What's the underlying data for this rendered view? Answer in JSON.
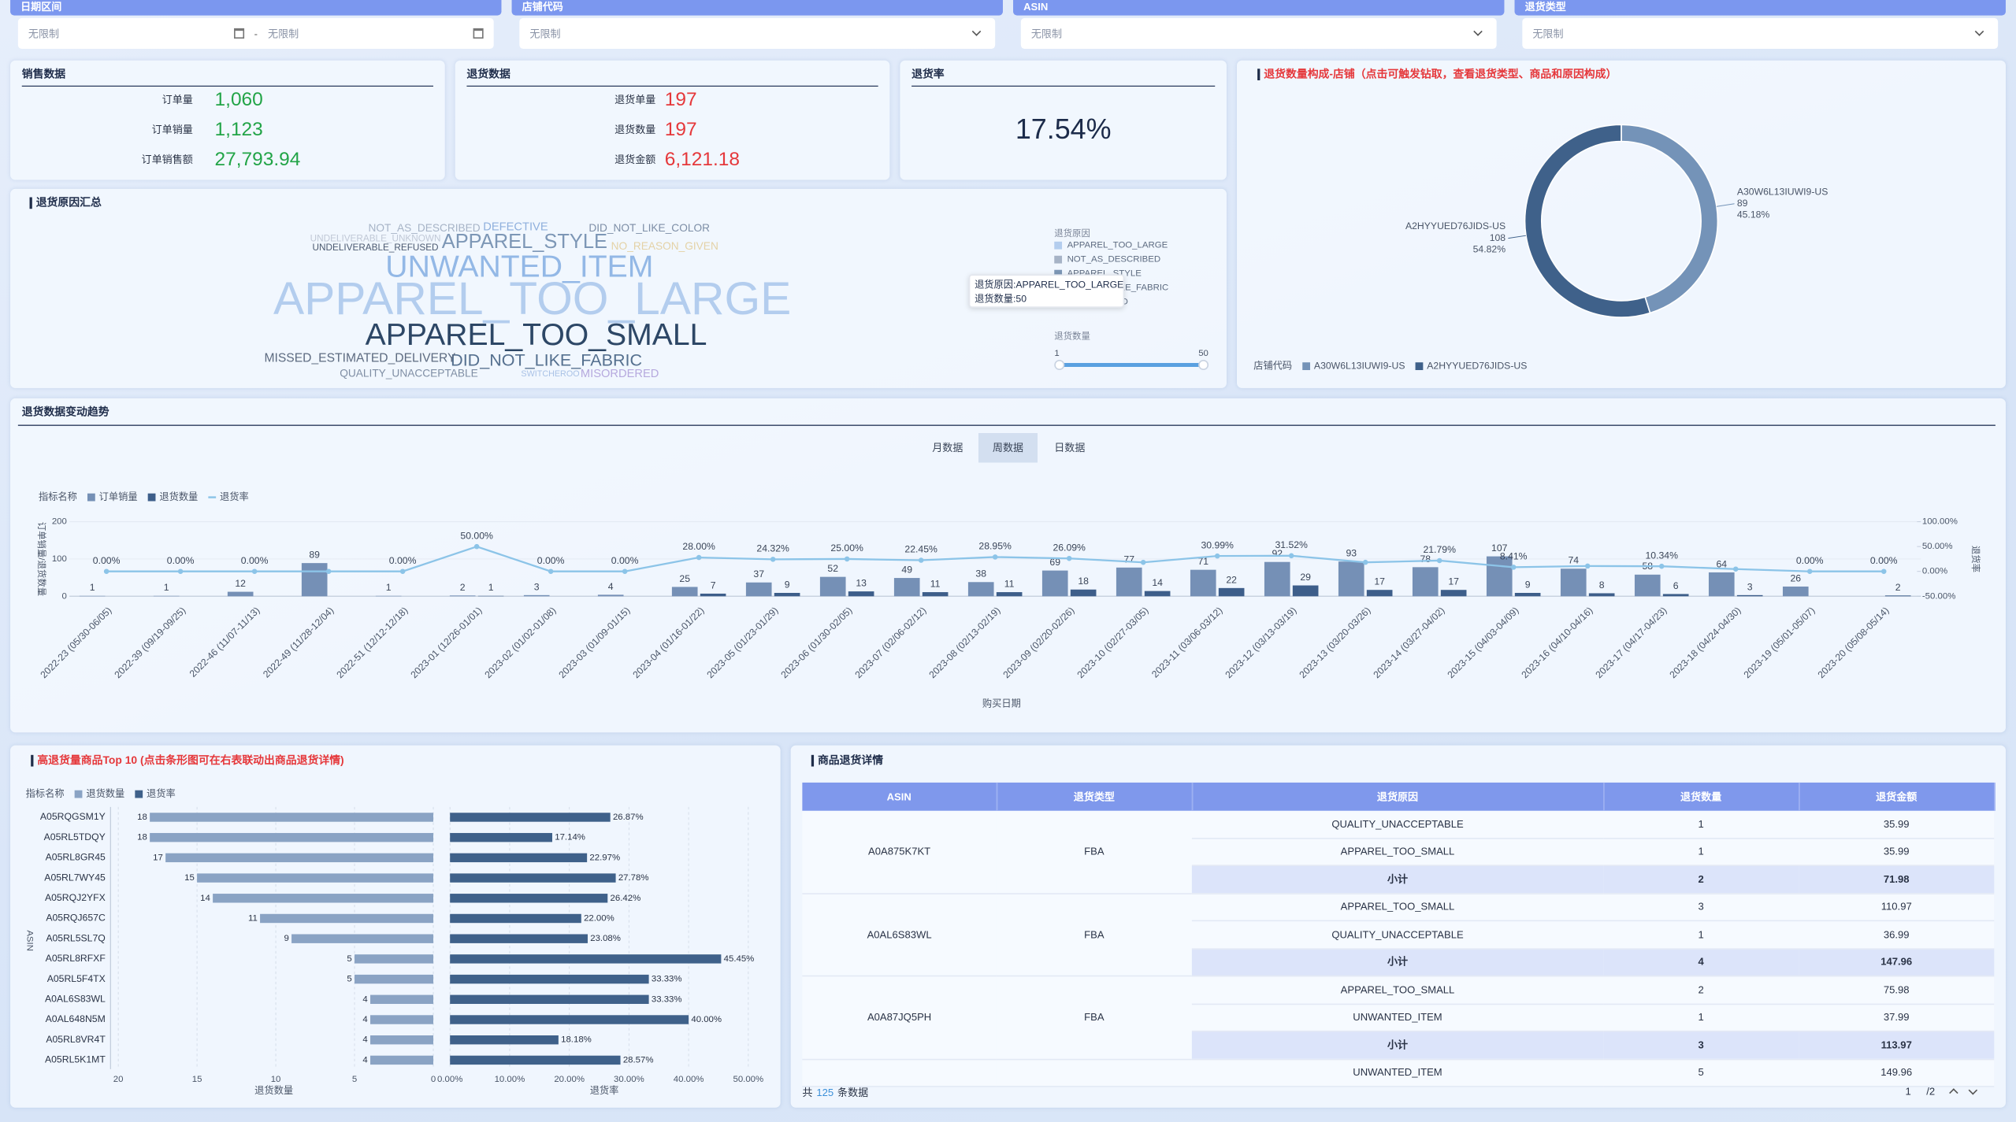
{
  "filters": [
    {
      "label": "日期区间",
      "values": [
        "无限制",
        "无限制"
      ],
      "separator": "-"
    },
    {
      "label": "店铺代码",
      "values": [
        "无限制"
      ]
    },
    {
      "label": "ASIN",
      "values": [
        "无限制"
      ]
    },
    {
      "label": "退货类型",
      "values": [
        "无限制"
      ]
    }
  ],
  "kpi_cards": [
    {
      "title": "销售数据",
      "color": "#22a447",
      "items": [
        {
          "label": "订单量",
          "value": "1,060"
        },
        {
          "label": "订单销量",
          "value": "1,123"
        },
        {
          "label": "订单销售额",
          "value": "27,793.94"
        }
      ]
    },
    {
      "title": "退货数据",
      "color": "#e5383b",
      "items": [
        {
          "label": "退货单量",
          "value": "197"
        },
        {
          "label": "退货数量",
          "value": "197"
        },
        {
          "label": "退货金额",
          "value": "6,121.18"
        }
      ]
    },
    {
      "title": "退货率",
      "value": "17.54%"
    }
  ],
  "chart_data": [
    {
      "type": "wordcloud",
      "title": "退货原因汇总",
      "words": [
        "APPAREL_TOO_LARGE",
        "UNWANTED_ITEM",
        "APPAREL_TOO_SMALL",
        "APPAREL_STYLE",
        "DID_NOT_LIKE_FABRIC",
        "MISSED_ESTIMATED_DELIVERY",
        "DEFECTIVE",
        "NOT_AS_DESCRIBED",
        "DID_NOT_LIKE_COLOR",
        "NO_REASON_GIVEN",
        "UNDELIVERABLE_REFUSED",
        "UNDELIVERABLE_UNKNOWN",
        "QUALITY_UNACCEPTABLE",
        "MISORDERED",
        "SWITCHEROO"
      ],
      "values": [
        50,
        30,
        30,
        16,
        12,
        6,
        5,
        4,
        4,
        4,
        2,
        2,
        4,
        5,
        1
      ],
      "colors": [
        "#b3cdee",
        "#93b8e6",
        "#2d4766",
        "#7d97b6",
        "#55708f",
        "#5d6b80",
        "#8fb0dd",
        "#a6b3c6",
        "#7d8ea6",
        "#e4d2a6",
        "#4c5a70",
        "#c0c8d6",
        "#7f8ea4",
        "#b6a9de",
        "#a9c2e6"
      ],
      "legend": {
        "title": "退货原因",
        "items": [
          "APPAREL_TOO_LARGE",
          "NOT_AS_DESCRIBED",
          "APPAREL_STYLE",
          "DID_NOT_LIKE_FABRIC",
          "MISORDERED"
        ],
        "colors": [
          "#b3cdee",
          "#a6b3c6",
          "#7d97b6",
          "#55708f",
          "#b6a9de"
        ]
      },
      "size_legend": {
        "title": "退货数量",
        "range": [
          1,
          50
        ],
        "color": "#5aa0e0"
      },
      "tooltip": [
        "退货原因:APPAREL_TOO_LARGE",
        "退货数量:50"
      ]
    },
    {
      "type": "donut",
      "title": "退货数量构成-店铺（点击可触发钻取，查看退货类型、商品和原因构成）",
      "labels": [
        "A30W6L13IUWI9-US",
        "A2HYYUED76JIDS-US"
      ],
      "values": [
        89,
        108
      ],
      "percent_labels": [
        "45.18%",
        "54.82%"
      ],
      "colors": [
        "#7493b8",
        "#3f618a"
      ],
      "legend_title": "店铺代码"
    },
    {
      "type": "combo",
      "title": "退货数据变动趋势",
      "tabs": [
        "月数据",
        "周数据",
        "日数据"
      ],
      "active_tab": 1,
      "legend_title": "指标名称",
      "x_title": "购买日期",
      "y_title": "订单销量/退货数量",
      "y2_title": "退货率",
      "categories": [
        "2022-23 (05/30-06/05)",
        "2022-39 (09/19-09/25)",
        "2022-46 (11/07-11/13)",
        "2022-49 (11/28-12/04)",
        "2022-51 (12/12-12/18)",
        "2023-01 (12/26-01/01)",
        "2023-02 (01/02-01/08)",
        "2023-03 (01/09-01/15)",
        "2023-04 (01/16-01/22)",
        "2023-05 (01/23-01/29)",
        "2023-06 (01/30-02/05)",
        "2023-07 (02/06-02/12)",
        "2023-08 (02/13-02/19)",
        "2023-09 (02/20-02/26)",
        "2023-10 (02/27-03/05)",
        "2023-11 (03/06-03/12)",
        "2023-12 (03/13-03/19)",
        "2023-13 (03/20-03/26)",
        "2023-14 (03/27-04/02)",
        "2023-15 (04/03-04/09)",
        "2023-16 (04/10-04/16)",
        "2023-17 (04/17-04/23)",
        "2023-18 (04/24-04/30)",
        "2023-19 (05/01-05/07)",
        "2023-20 (05/08-05/14)"
      ],
      "series": [
        {
          "name": "订单销量",
          "type": "bar",
          "color": "#7590b6",
          "values": [
            1,
            1,
            12,
            89,
            1,
            2,
            3,
            4,
            25,
            37,
            52,
            49,
            38,
            69,
            77,
            71,
            92,
            93,
            78,
            107,
            74,
            58,
            64,
            26,
            null
          ]
        },
        {
          "name": "退货数量",
          "type": "bar",
          "color": "#3d5e8a",
          "values": [
            null,
            null,
            null,
            null,
            null,
            1,
            null,
            null,
            7,
            9,
            13,
            11,
            11,
            18,
            14,
            22,
            29,
            17,
            17,
            9,
            8,
            6,
            3,
            null,
            2
          ]
        },
        {
          "name": "退货率",
          "type": "line",
          "axis": "y2",
          "color": "#8cc4e8",
          "values": [
            0,
            0,
            0,
            0,
            0,
            50,
            0,
            0,
            28,
            24.32,
            25,
            22.45,
            28.95,
            26.09,
            18.18,
            30.99,
            31.52,
            18.28,
            21.79,
            8.41,
            10.81,
            10.34,
            4.69,
            0,
            0
          ],
          "value_labels": [
            "0.00%",
            "0.00%",
            "0.00%",
            null,
            "0.00%",
            "50.00%",
            "0.00%",
            "0.00%",
            "28.00%",
            "24.32%",
            "25.00%",
            "22.45%",
            "28.95%",
            "26.09%",
            null,
            "30.99%",
            "31.52%",
            null,
            "21.79%",
            "8.41%",
            null,
            "10.34%",
            null,
            "0.00%",
            "0.00%"
          ]
        }
      ],
      "ylim": [
        0,
        200
      ],
      "yticks": [
        0,
        100,
        200
      ],
      "y2lim": [
        -50,
        100
      ],
      "y2ticks": [
        {
          "value": 100,
          "label": "100.00%"
        },
        {
          "value": 50,
          "label": "50.00%"
        },
        {
          "value": 0,
          "label": "0.00%"
        },
        {
          "value": -50,
          "label": "-50.00%"
        }
      ],
      "grid": true
    },
    {
      "type": "butterfly",
      "title": "高退货量商品Top 10 (点击条形图可在右表联动出商品退货详情)",
      "legend_title": "指标名称",
      "categories": [
        "A05RQGSM1Y",
        "A05RL5TDQY",
        "A05RL8GR45",
        "A05RL7WY45",
        "A05RQJ2YFX",
        "A05RQJ657C",
        "A05RL5SL7Q",
        "A05RL8RFXF",
        "A05RL5F4TX",
        "A0AL6S83WL",
        "A0AL648N5M",
        "A05RL8VR4T",
        "A05RL5K1MT"
      ],
      "series": [
        {
          "name": "退货数量",
          "color": "#8aa3c4",
          "axis": "x",
          "values": [
            18,
            18,
            17,
            15,
            14,
            11,
            9,
            5,
            5,
            4,
            4,
            4,
            4
          ]
        },
        {
          "name": "退货率",
          "color": "#3f618a",
          "axis": "x2",
          "values": [
            26.87,
            17.14,
            22.97,
            27.78,
            26.42,
            22.0,
            23.08,
            45.45,
            33.33,
            33.33,
            40.0,
            18.18,
            28.57
          ],
          "value_labels": [
            "26.87%",
            "17.14%",
            "22.97%",
            "27.78%",
            "26.42%",
            "22.00%",
            "23.08%",
            "45.45%",
            "33.33%",
            "33.33%",
            "40.00%",
            "18.18%",
            "28.57%"
          ]
        }
      ],
      "xlim": [
        20,
        0
      ],
      "xticks": [
        20,
        15,
        10,
        5,
        0
      ],
      "x_title": "退货数量",
      "x2lim": [
        0,
        50
      ],
      "x2ticks": [
        {
          "value": 0,
          "label": "0.00%"
        },
        {
          "value": 10,
          "label": "10.00%"
        },
        {
          "value": 20,
          "label": "20.00%"
        },
        {
          "value": 30,
          "label": "30.00%"
        },
        {
          "value": 40,
          "label": "40.00%"
        },
        {
          "value": 50,
          "label": "50.00%"
        }
      ],
      "x2_title": "退货率",
      "y_title": "ASIN",
      "grid": true
    }
  ],
  "table": {
    "title": "商品退货详情",
    "columns": [
      "ASIN",
      "退货类型",
      "退货原因",
      "退货数量",
      "退货金额"
    ],
    "groups": [
      {
        "asin": "A0A875K7KT",
        "type": "FBA",
        "rows": [
          [
            "QUALITY_UNACCEPTABLE",
            "1",
            "35.99"
          ],
          [
            "APPAREL_TOO_SMALL",
            "1",
            "35.99"
          ]
        ],
        "subtotal": {
          "label": "小计",
          "qty": "2",
          "amount": "71.98"
        }
      },
      {
        "asin": "A0AL6S83WL",
        "type": "FBA",
        "rows": [
          [
            "APPAREL_TOO_SMALL",
            "3",
            "110.97"
          ],
          [
            "QUALITY_UNACCEPTABLE",
            "1",
            "36.99"
          ]
        ],
        "subtotal": {
          "label": "小计",
          "qty": "4",
          "amount": "147.96"
        }
      },
      {
        "asin": "A0A87JQ5PH",
        "type": "FBA",
        "rows": [
          [
            "APPAREL_TOO_SMALL",
            "2",
            "75.98"
          ],
          [
            "UNWANTED_ITEM",
            "1",
            "37.99"
          ]
        ],
        "subtotal": {
          "label": "小计",
          "qty": "3",
          "amount": "113.97"
        }
      },
      {
        "rows": [
          [
            "UNWANTED_ITEM",
            "5",
            "149.96"
          ]
        ]
      }
    ],
    "footer": {
      "prefix": "共",
      "count": "125",
      "suffix": "条数据",
      "page": "1",
      "pages": "/2"
    }
  }
}
